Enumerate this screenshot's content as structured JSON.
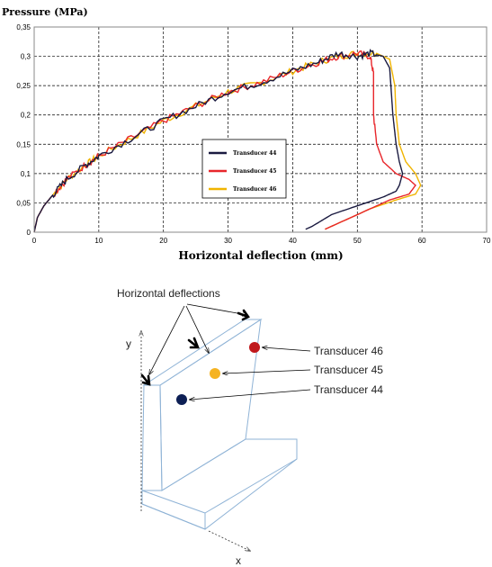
{
  "chart_data": {
    "type": "line",
    "title": "",
    "ylabel": "Pressure (MPa)",
    "xlabel": "Horizontal deflection (mm)",
    "xlim": [
      0,
      70
    ],
    "ylim": [
      0,
      0.35
    ],
    "x_ticks": [
      "0",
      "10",
      "20",
      "30",
      "40",
      "50",
      "60",
      "70"
    ],
    "y_ticks": [
      "0",
      "0,05",
      "0,1",
      "0,15",
      "0,2",
      "0,25",
      "0,3",
      "0,35"
    ],
    "grid": true,
    "legend_position": "center-right",
    "series": [
      {
        "name": "Transducer 44",
        "color": "#1a1a40",
        "points": [
          [
            0,
            0
          ],
          [
            0.5,
            0.025
          ],
          [
            1.5,
            0.045
          ],
          [
            3,
            0.065
          ],
          [
            5,
            0.09
          ],
          [
            8,
            0.115
          ],
          [
            10,
            0.13
          ],
          [
            15,
            0.16
          ],
          [
            20,
            0.19
          ],
          [
            25,
            0.215
          ],
          [
            30,
            0.24
          ],
          [
            35,
            0.255
          ],
          [
            40,
            0.275
          ],
          [
            44,
            0.29
          ],
          [
            47,
            0.305
          ],
          [
            50,
            0.3
          ],
          [
            52,
            0.305
          ],
          [
            54,
            0.3
          ],
          [
            55,
            0.28
          ],
          [
            55.5,
            0.2
          ],
          [
            56,
            0.15
          ],
          [
            56.5,
            0.12
          ],
          [
            57,
            0.1
          ],
          [
            56.5,
            0.08
          ],
          [
            56,
            0.07
          ],
          [
            54,
            0.06
          ],
          [
            50,
            0.045
          ],
          [
            46,
            0.03
          ],
          [
            43,
            0.01
          ],
          [
            42,
            0.005
          ]
        ]
      },
      {
        "name": "Transducer 45",
        "color": "#e8262b",
        "points": [
          [
            0,
            0
          ],
          [
            0.5,
            0.025
          ],
          [
            1.5,
            0.045
          ],
          [
            3,
            0.065
          ],
          [
            5,
            0.09
          ],
          [
            8,
            0.115
          ],
          [
            10,
            0.13
          ],
          [
            15,
            0.16
          ],
          [
            20,
            0.19
          ],
          [
            25,
            0.215
          ],
          [
            30,
            0.24
          ],
          [
            35,
            0.255
          ],
          [
            40,
            0.275
          ],
          [
            44,
            0.29
          ],
          [
            47,
            0.3
          ],
          [
            50,
            0.305
          ],
          [
            52,
            0.3
          ],
          [
            52.5,
            0.27
          ],
          [
            52.5,
            0.2
          ],
          [
            53,
            0.15
          ],
          [
            54,
            0.12
          ],
          [
            56,
            0.1
          ],
          [
            58,
            0.09
          ],
          [
            59,
            0.08
          ],
          [
            58,
            0.065
          ],
          [
            55,
            0.055
          ],
          [
            52,
            0.04
          ],
          [
            48,
            0.02
          ],
          [
            45,
            0.005
          ]
        ]
      },
      {
        "name": "Transducer 46",
        "color": "#f0b400",
        "points": [
          [
            0,
            0
          ],
          [
            0.5,
            0.025
          ],
          [
            1.5,
            0.045
          ],
          [
            3,
            0.065
          ],
          [
            5,
            0.09
          ],
          [
            8,
            0.115
          ],
          [
            10,
            0.13
          ],
          [
            15,
            0.16
          ],
          [
            20,
            0.19
          ],
          [
            25,
            0.215
          ],
          [
            30,
            0.24
          ],
          [
            35,
            0.255
          ],
          [
            40,
            0.275
          ],
          [
            44,
            0.29
          ],
          [
            47,
            0.3
          ],
          [
            50,
            0.305
          ],
          [
            53,
            0.305
          ],
          [
            55,
            0.295
          ],
          [
            55.8,
            0.25
          ],
          [
            56,
            0.2
          ],
          [
            56.5,
            0.15
          ],
          [
            57.5,
            0.12
          ],
          [
            59,
            0.1
          ],
          [
            59.8,
            0.08
          ],
          [
            59,
            0.065
          ],
          [
            56,
            0.055
          ],
          [
            52,
            0.04
          ],
          [
            48,
            0.02
          ],
          [
            45,
            0.005
          ]
        ]
      }
    ]
  },
  "diagram": {
    "title": "Horizontal deflections",
    "axis_y": "y",
    "axis_x": "x",
    "points": [
      {
        "label": "Transducer 46",
        "color": "#c0181c"
      },
      {
        "label": "Transducer 45",
        "color": "#f5b322"
      },
      {
        "label": "Transducer 44",
        "color": "#0d1f55"
      }
    ]
  }
}
